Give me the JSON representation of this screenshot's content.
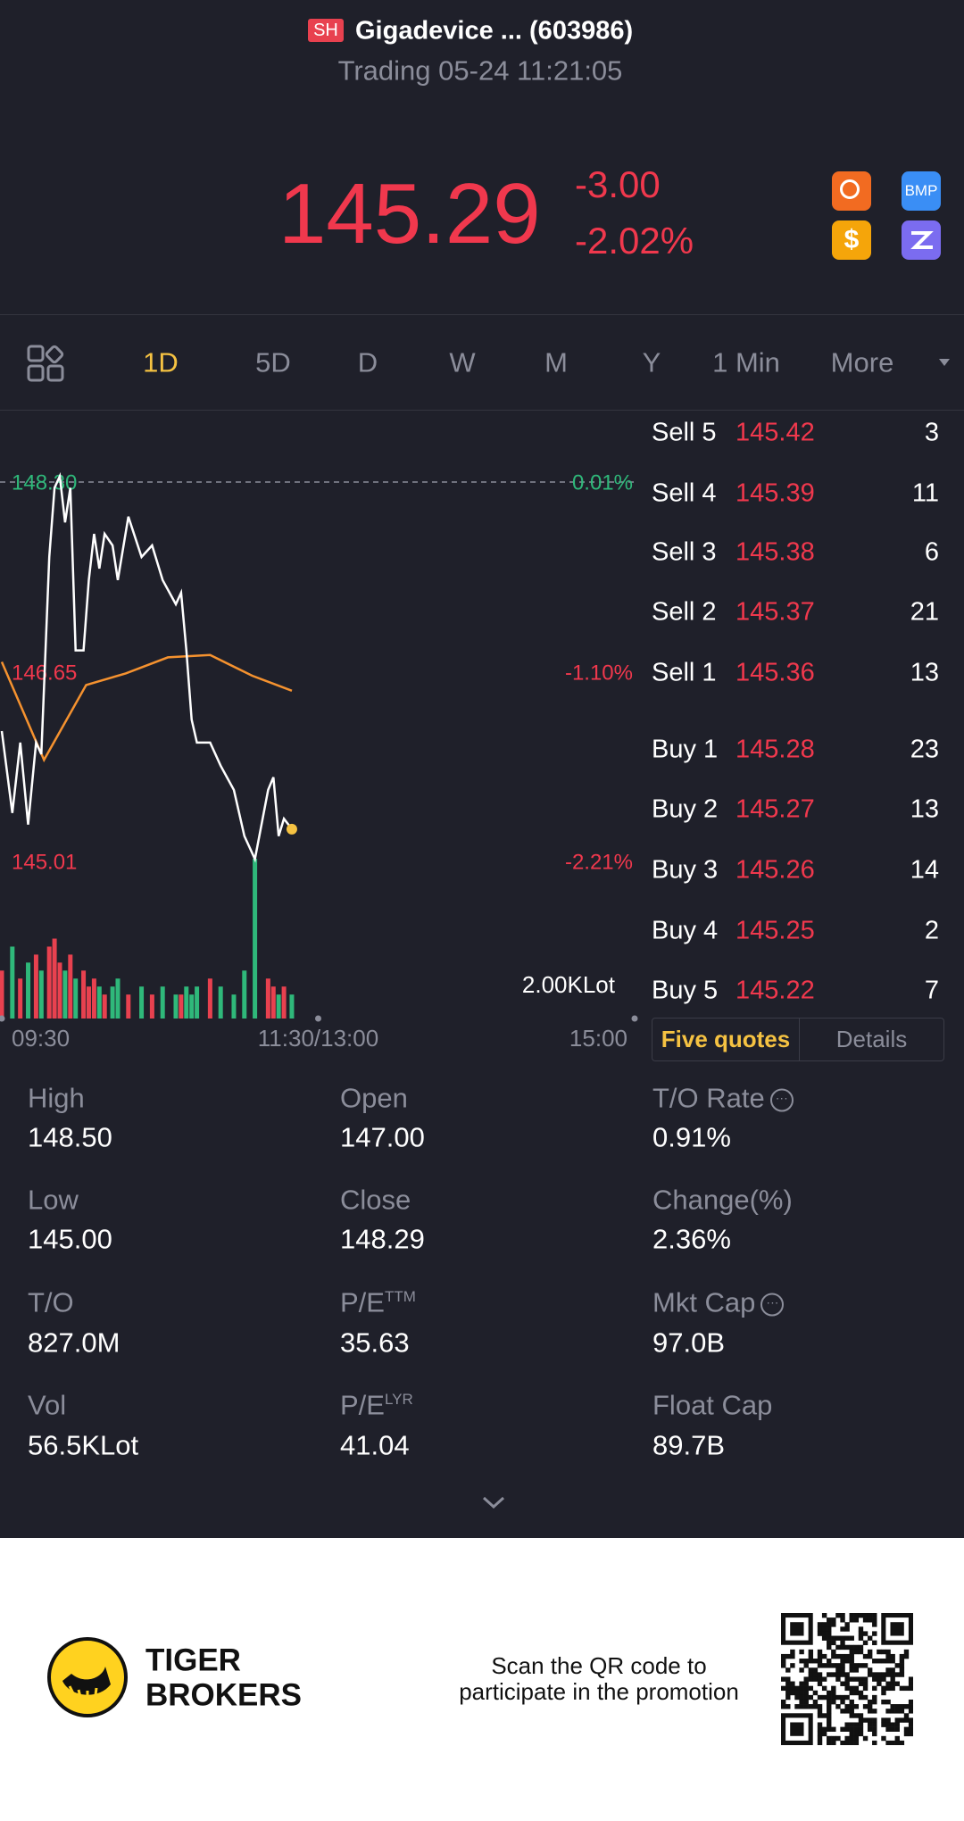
{
  "header": {
    "badge": "SH",
    "title": "Gigadevice ... (603986)",
    "subtitle": "Trading 05-24 11:21:05"
  },
  "quote": {
    "price": "145.29",
    "change": "-3.00",
    "change_pct": "-2.02%"
  },
  "icons": {
    "bmp": "BMP",
    "dollar": "$"
  },
  "tabs": [
    "1D",
    "5D",
    "D",
    "W",
    "M",
    "Y",
    "1 Min",
    "More"
  ],
  "chart": {
    "colors": {
      "price": "#ffffff",
      "avg": "#f5922f",
      "up": "#e8414f",
      "down": "#2fb87a"
    },
    "xlim": [
      0,
      240
    ],
    "xticks": [
      {
        "value": 0,
        "label": "09:30"
      },
      {
        "value": 120,
        "label": "11:30/13:00"
      },
      {
        "value": 240,
        "label": "15:00"
      }
    ],
    "yticks": [
      {
        "value": 148.3,
        "label": "148.30",
        "pct": "0.01%"
      },
      {
        "value": 146.65,
        "label": "146.65",
        "pct": "-1.10%"
      },
      {
        "value": 145.01,
        "label": "145.01",
        "pct": "-2.21%"
      }
    ],
    "x": [
      0,
      4,
      7,
      10,
      13,
      15,
      18,
      20,
      22,
      24,
      26,
      28,
      31,
      33,
      35,
      37,
      39,
      42,
      44,
      48,
      53,
      57,
      61,
      66,
      68,
      70,
      72,
      74,
      79,
      83,
      88,
      92,
      96,
      101,
      103,
      105,
      107,
      110
    ],
    "price": [
      146.14,
      145.43,
      146.04,
      145.33,
      146.04,
      145.94,
      147.65,
      148.25,
      148.35,
      147.95,
      148.25,
      146.84,
      146.84,
      147.45,
      147.85,
      147.55,
      147.85,
      147.75,
      147.45,
      148.0,
      147.65,
      147.75,
      147.45,
      147.24,
      147.34,
      146.84,
      146.24,
      146.04,
      146.04,
      145.84,
      145.63,
      145.23,
      145.03,
      145.63,
      145.74,
      145.23,
      145.38,
      145.29
    ],
    "avg_x": [
      0,
      16,
      32,
      47,
      63,
      79,
      95,
      110
    ],
    "avg": [
      146.74,
      145.89,
      146.54,
      146.64,
      146.78,
      146.8,
      146.62,
      146.49
    ],
    "volume": {
      "ylim": [
        0,
        2
      ],
      "label": "2.00KLot",
      "values": [
        0.6,
        0.9,
        0.5,
        0.7,
        0.8,
        0.6,
        0.9,
        1.0,
        0.7,
        0.6,
        0.8,
        0.5,
        0.6,
        0.4,
        0.5,
        0.4,
        0.3,
        0.4,
        0.5,
        0.3,
        0.4,
        0.3,
        0.4,
        0.3,
        0.3,
        0.4,
        0.3,
        0.4,
        0.5,
        0.4,
        0.3,
        0.6,
        2.0,
        0.5,
        0.4,
        0.3,
        0.4,
        0.3
      ]
    }
  },
  "order_book": [
    {
      "label": "Sell 5",
      "price": 145.42,
      "qty": 3
    },
    {
      "label": "Sell 4",
      "price": 145.39,
      "qty": 11
    },
    {
      "label": "Sell 3",
      "price": 145.38,
      "qty": 6
    },
    {
      "label": "Sell 2",
      "price": 145.37,
      "qty": 21
    },
    {
      "label": "Sell 1",
      "price": 145.36,
      "qty": 13
    },
    {
      "label": "Buy 1",
      "price": 145.28,
      "qty": 23
    },
    {
      "label": "Buy 2",
      "price": 145.27,
      "qty": 13
    },
    {
      "label": "Buy 3",
      "price": 145.26,
      "qty": 14
    },
    {
      "label": "Buy 4",
      "price": 145.25,
      "qty": 2
    },
    {
      "label": "Buy 5",
      "price": 145.22,
      "qty": 7
    }
  ],
  "book_tabs": [
    "Five quotes",
    "Details"
  ],
  "stats": [
    [
      {
        "label": "High",
        "value": "148.50"
      },
      {
        "label": "Open",
        "value": "147.00"
      },
      {
        "label": "T/O Rate",
        "value": "0.91%"
      }
    ],
    [
      {
        "label": "Low",
        "value": "145.00"
      },
      {
        "label": "Close",
        "value": "148.29"
      },
      {
        "label": "Change(%)",
        "value": "2.36%"
      }
    ],
    [
      {
        "label": "T/O",
        "value": "827.0M"
      },
      {
        "label": "P/E",
        "sup": "TTM",
        "value": "35.63"
      },
      {
        "label": "Mkt Cap",
        "value": "97.0B"
      }
    ],
    [
      {
        "label": "Vol",
        "value": "56.5KLot"
      },
      {
        "label": "P/E",
        "sup": "LYR",
        "value": "41.04"
      },
      {
        "label": "Float Cap",
        "value": "89.7B"
      }
    ]
  ],
  "footer": {
    "brand_line1": "TIGER",
    "brand_line2": "BROKERS",
    "promo_line1": "Scan the QR code to",
    "promo_line2": "participate in the promotion"
  }
}
